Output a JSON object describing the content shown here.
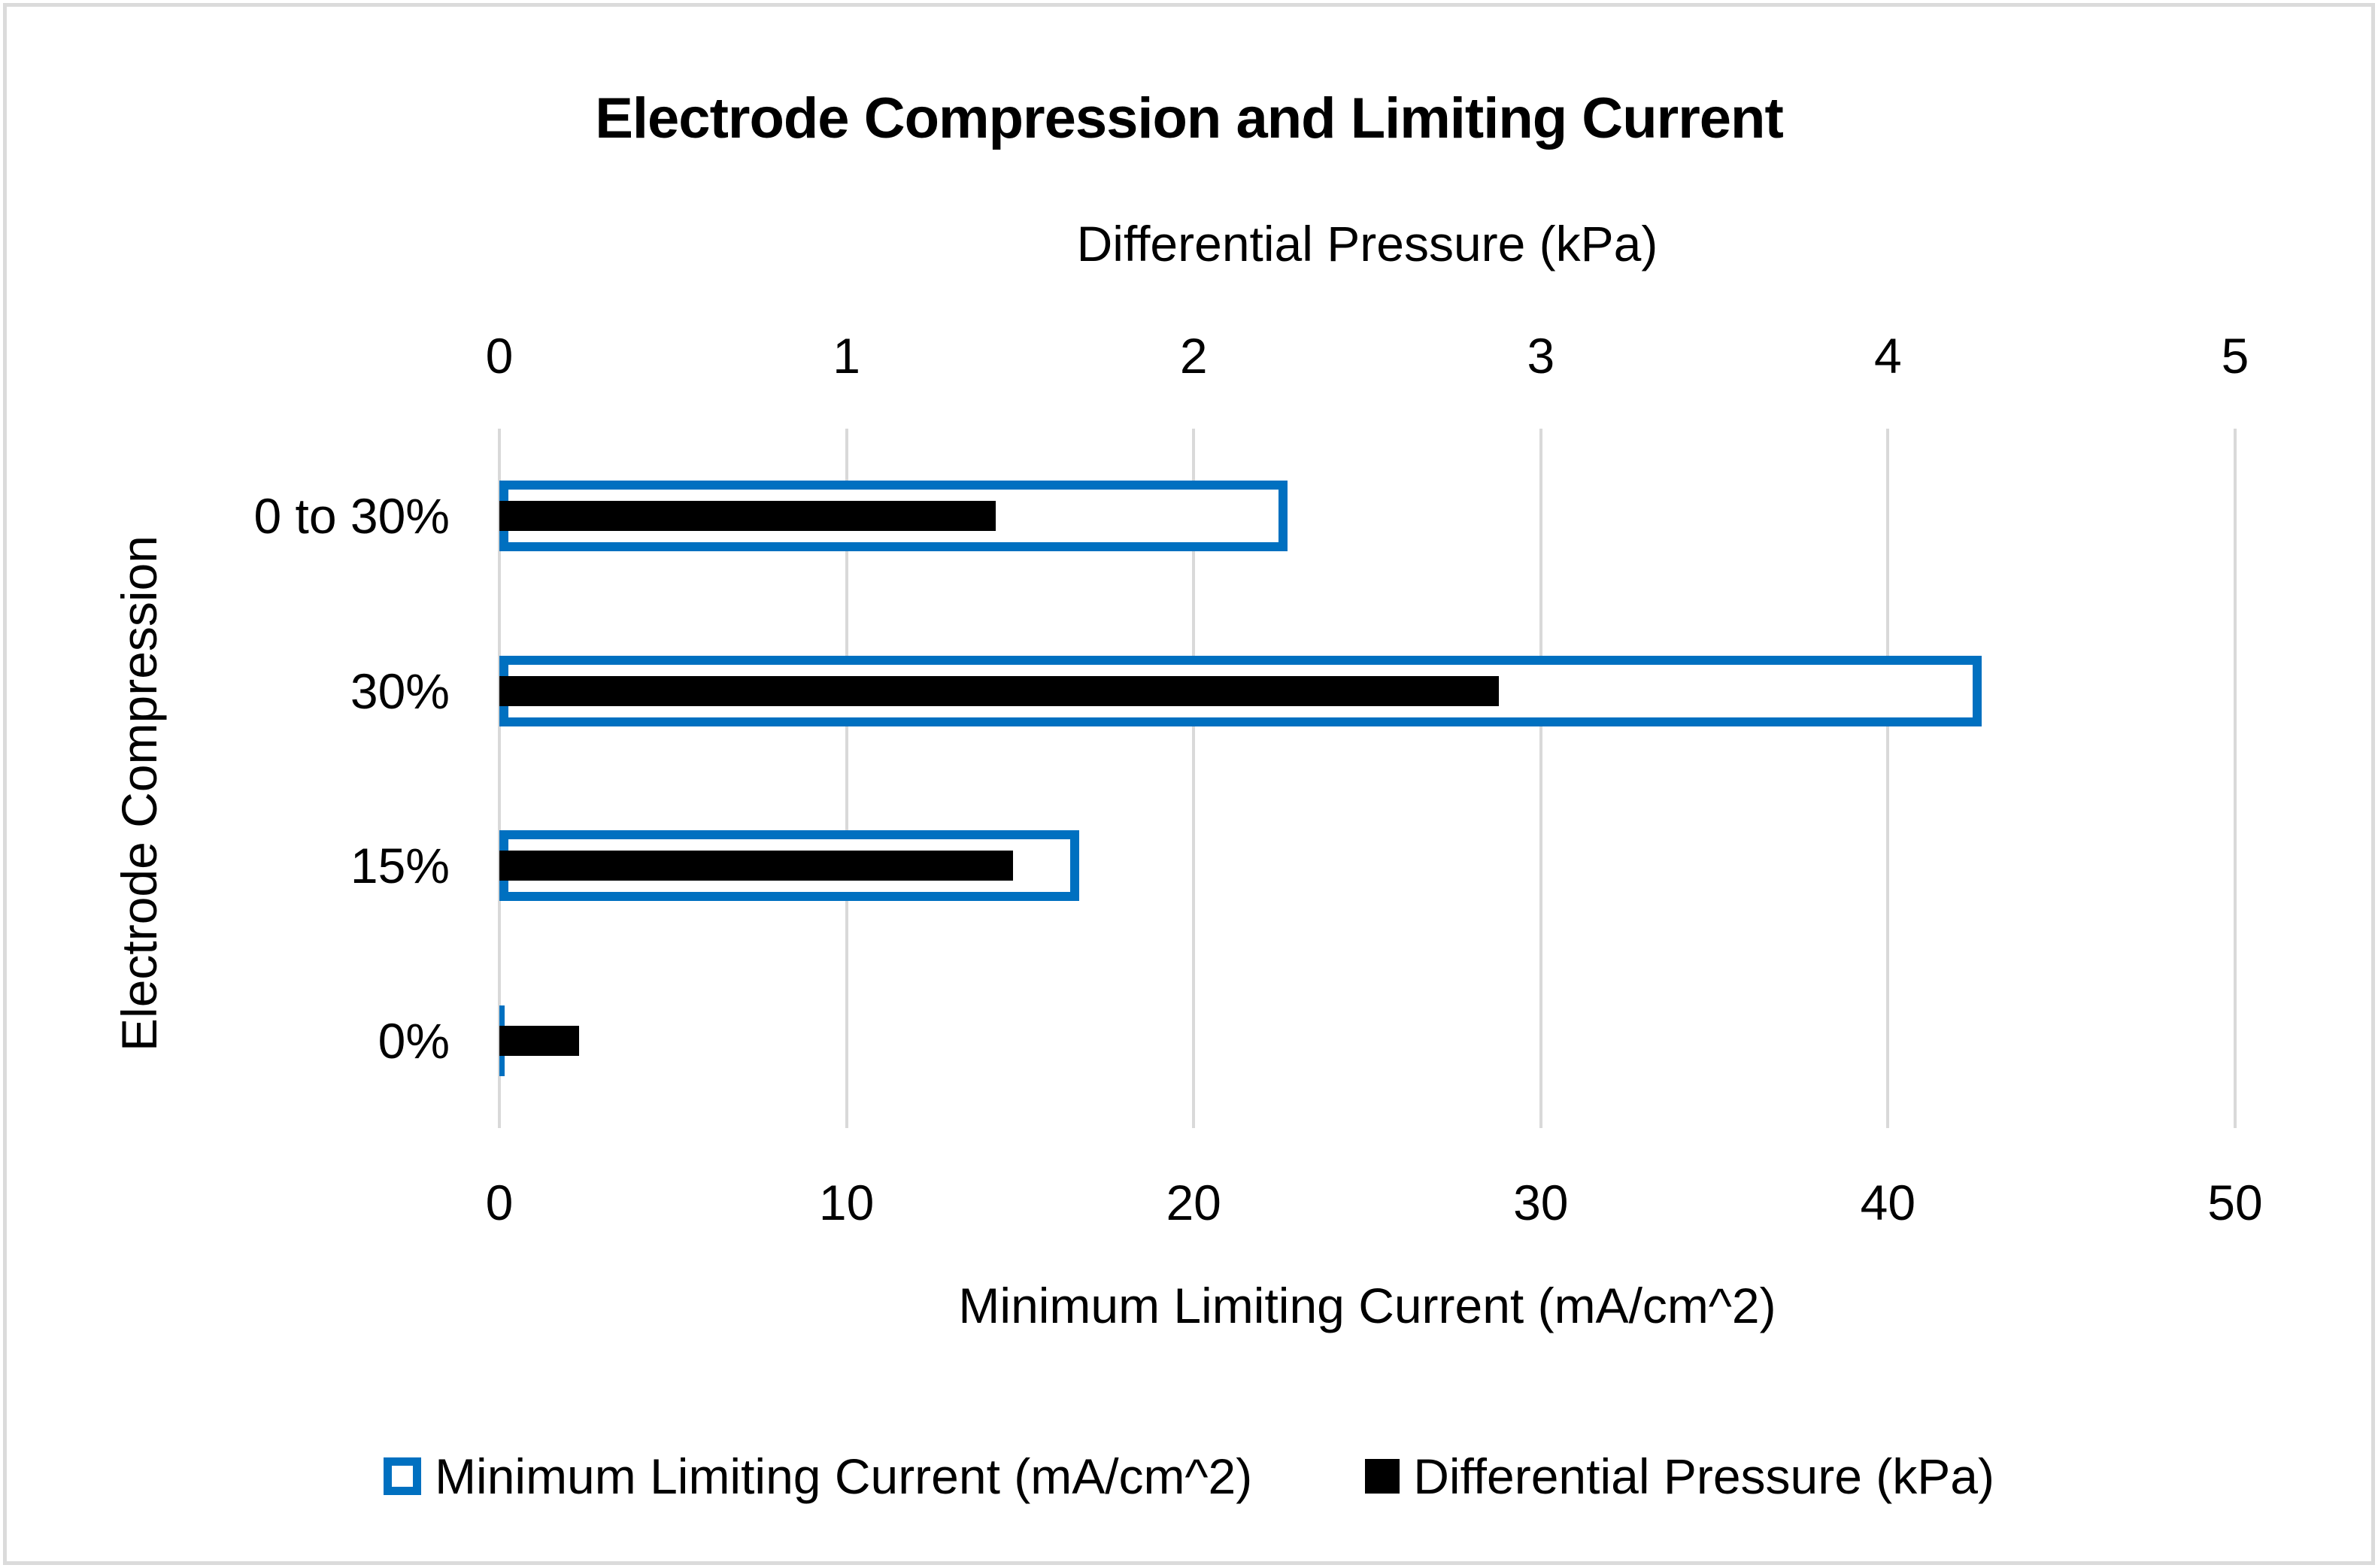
{
  "chart_data": {
    "type": "bar",
    "orientation": "horizontal",
    "title": "Electrode Compression and Limiting Current",
    "categories": [
      "0 to 30%",
      "30%",
      "15%",
      "0%"
    ],
    "series": [
      {
        "name": "Minimum Limiting Current (mA/cm^2)",
        "axis": "bottom",
        "style": "outlined",
        "color": "#0070C0",
        "values": [
          22.7,
          42.7,
          16.7,
          0.15
        ]
      },
      {
        "name": "Differential Pressure (kPa)",
        "axis": "top",
        "style": "solid",
        "color": "#000000",
        "values": [
          1.43,
          2.88,
          1.48,
          0.23
        ]
      }
    ],
    "top_axis": {
      "label": "Differential Pressure (kPa)",
      "ticks": [
        "0",
        "1",
        "2",
        "3",
        "4",
        "5"
      ],
      "range": [
        0,
        5
      ]
    },
    "bottom_axis": {
      "label": "Minimum Limiting Current (mA/cm^2)",
      "ticks": [
        "0",
        "10",
        "20",
        "30",
        "40",
        "50"
      ],
      "range": [
        0,
        50
      ]
    },
    "y_axis": {
      "label": "Electrode Compression"
    },
    "layout": {
      "grid": "vertical-only",
      "legend_position": "bottom-center",
      "grid_color": "#D9D9D9",
      "frame_color": "#DBDBDB"
    }
  }
}
